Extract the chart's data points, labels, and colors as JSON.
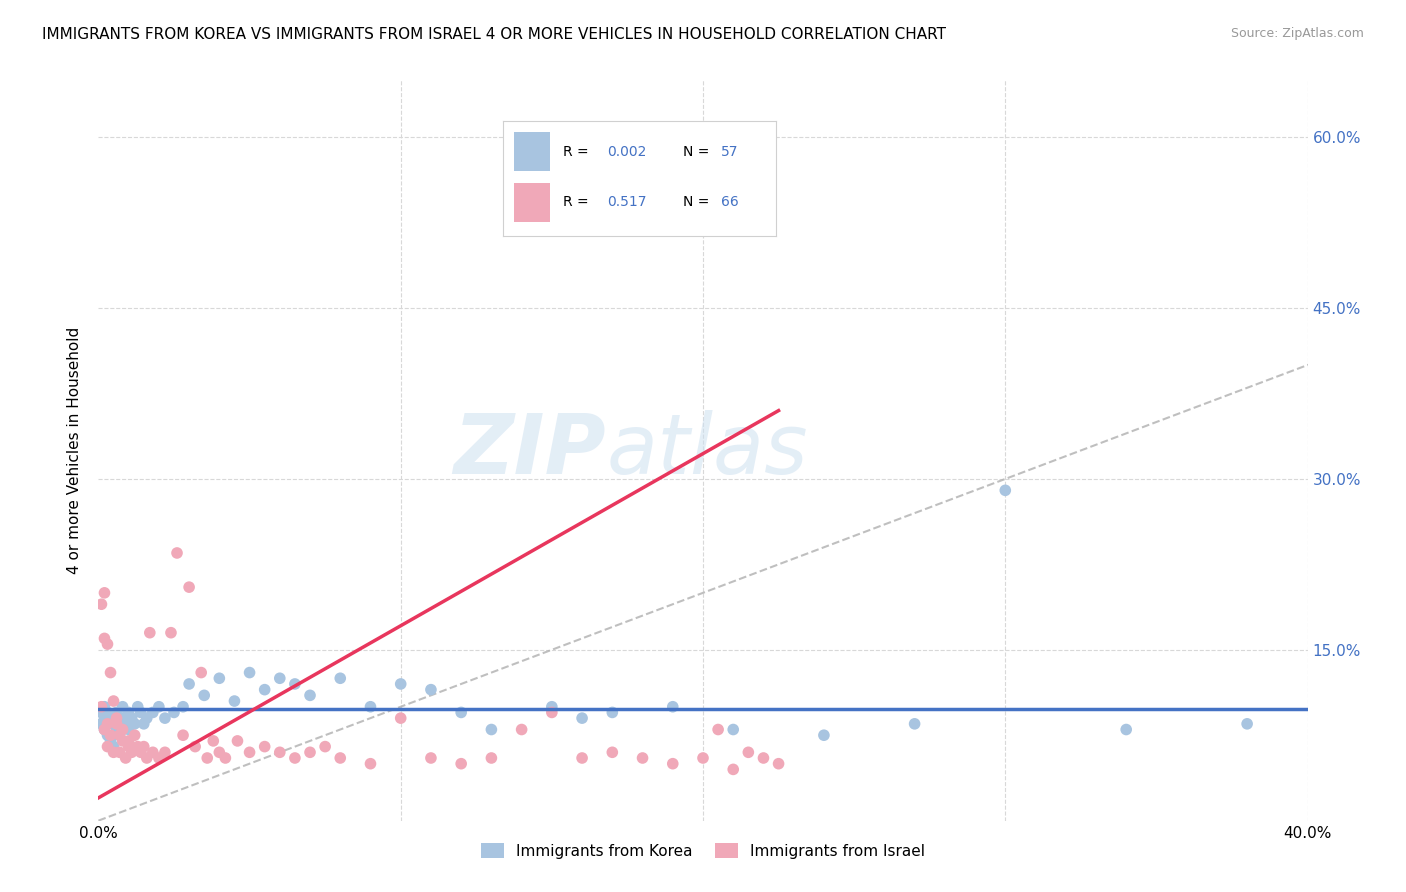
{
  "title": "IMMIGRANTS FROM KOREA VS IMMIGRANTS FROM ISRAEL 4 OR MORE VEHICLES IN HOUSEHOLD CORRELATION CHART",
  "source": "Source: ZipAtlas.com",
  "ylabel": "4 or more Vehicles in Household",
  "xlabel_korea": "Immigrants from Korea",
  "xlabel_israel": "Immigrants from Israel",
  "xlim": [
    0.0,
    0.4
  ],
  "ylim": [
    0.0,
    0.65
  ],
  "R_korea": 0.002,
  "N_korea": 57,
  "R_israel": 0.517,
  "N_israel": 66,
  "color_korea": "#a8c4e0",
  "color_israel": "#f0a8b8",
  "line_korea": "#4472c4",
  "line_israel": "#e8365d",
  "line_diagonal": "#b0b0b0",
  "text_blue": "#4472c4",
  "watermark_color": "#cde0f0",
  "korea_x": [
    0.001,
    0.001,
    0.002,
    0.002,
    0.002,
    0.003,
    0.003,
    0.003,
    0.004,
    0.004,
    0.005,
    0.005,
    0.006,
    0.006,
    0.007,
    0.007,
    0.008,
    0.008,
    0.009,
    0.01,
    0.01,
    0.011,
    0.012,
    0.013,
    0.014,
    0.015,
    0.016,
    0.018,
    0.02,
    0.022,
    0.025,
    0.028,
    0.03,
    0.035,
    0.04,
    0.045,
    0.05,
    0.055,
    0.06,
    0.065,
    0.07,
    0.08,
    0.09,
    0.1,
    0.11,
    0.12,
    0.13,
    0.15,
    0.16,
    0.17,
    0.19,
    0.21,
    0.24,
    0.27,
    0.3,
    0.34,
    0.38
  ],
  "korea_y": [
    0.085,
    0.095,
    0.09,
    0.08,
    0.1,
    0.075,
    0.085,
    0.095,
    0.07,
    0.09,
    0.065,
    0.085,
    0.08,
    0.095,
    0.075,
    0.085,
    0.09,
    0.1,
    0.085,
    0.08,
    0.095,
    0.09,
    0.085,
    0.1,
    0.095,
    0.085,
    0.09,
    0.095,
    0.1,
    0.09,
    0.095,
    0.1,
    0.12,
    0.11,
    0.125,
    0.105,
    0.13,
    0.115,
    0.125,
    0.12,
    0.11,
    0.125,
    0.1,
    0.12,
    0.115,
    0.095,
    0.08,
    0.1,
    0.09,
    0.095,
    0.1,
    0.08,
    0.075,
    0.085,
    0.29,
    0.08,
    0.085
  ],
  "israel_x": [
    0.001,
    0.001,
    0.002,
    0.002,
    0.002,
    0.003,
    0.003,
    0.003,
    0.004,
    0.004,
    0.005,
    0.005,
    0.006,
    0.006,
    0.007,
    0.007,
    0.008,
    0.008,
    0.009,
    0.01,
    0.01,
    0.011,
    0.012,
    0.013,
    0.014,
    0.015,
    0.016,
    0.017,
    0.018,
    0.02,
    0.022,
    0.024,
    0.026,
    0.028,
    0.03,
    0.032,
    0.034,
    0.036,
    0.038,
    0.04,
    0.042,
    0.046,
    0.05,
    0.055,
    0.06,
    0.065,
    0.07,
    0.075,
    0.08,
    0.09,
    0.1,
    0.11,
    0.12,
    0.13,
    0.14,
    0.15,
    0.16,
    0.17,
    0.18,
    0.19,
    0.2,
    0.205,
    0.21,
    0.215,
    0.22,
    0.225
  ],
  "israel_y": [
    0.19,
    0.1,
    0.16,
    0.2,
    0.08,
    0.155,
    0.085,
    0.065,
    0.13,
    0.075,
    0.105,
    0.06,
    0.09,
    0.085,
    0.075,
    0.06,
    0.07,
    0.08,
    0.055,
    0.065,
    0.07,
    0.06,
    0.075,
    0.065,
    0.06,
    0.065,
    0.055,
    0.165,
    0.06,
    0.055,
    0.06,
    0.165,
    0.235,
    0.075,
    0.205,
    0.065,
    0.13,
    0.055,
    0.07,
    0.06,
    0.055,
    0.07,
    0.06,
    0.065,
    0.06,
    0.055,
    0.06,
    0.065,
    0.055,
    0.05,
    0.09,
    0.055,
    0.05,
    0.055,
    0.08,
    0.095,
    0.055,
    0.06,
    0.055,
    0.05,
    0.055,
    0.08,
    0.045,
    0.06,
    0.055,
    0.05
  ],
  "israel_trend_x": [
    0.0,
    0.225
  ],
  "israel_trend_y": [
    0.02,
    0.36
  ]
}
